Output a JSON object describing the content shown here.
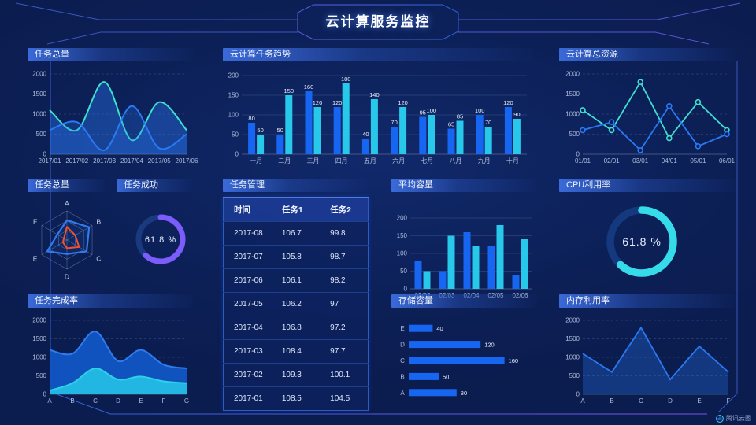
{
  "title": "云计算服务监控",
  "logo": {
    "text": "腾讯云图"
  },
  "colors": {
    "blue": "#1766f2",
    "cyan": "#28c8ea",
    "teal": "#3fe0cf",
    "purple": "#7c5cfa",
    "orange": "#f4502c",
    "background": "#0c2057"
  },
  "chart_data": [
    {
      "key": "task_total_line",
      "type": "area",
      "panel": "任务总量",
      "x": [
        "2017/01",
        "2017/02",
        "2017/03",
        "2017/04",
        "2017/05",
        "2017/06"
      ],
      "ylim": [
        0,
        2000
      ],
      "yticks": [
        0,
        500,
        1000,
        1500,
        2000
      ],
      "smooth": true,
      "grid": "dashed",
      "series": [
        {
          "name": "series-teal",
          "color": "#3fe0cf",
          "fill": "rgba(41,121,245,0.38)",
          "values": [
            1100,
            600,
            1800,
            350,
            1300,
            600
          ]
        },
        {
          "name": "series-blue",
          "color": "#2979f5",
          "fill": "rgba(41,121,245,0.25)",
          "values": [
            600,
            800,
            100,
            1200,
            150,
            500
          ]
        }
      ]
    },
    {
      "key": "cloud_task_trend",
      "type": "bar",
      "panel": "云计算任务趋势",
      "categories": [
        "一月",
        "二月",
        "三月",
        "四月",
        "五月",
        "六月",
        "七月",
        "八月",
        "九月",
        "十月"
      ],
      "ylim": [
        0,
        200
      ],
      "yticks": [
        0,
        50,
        100,
        150,
        200
      ],
      "labels": true,
      "series": [
        {
          "name": "series-blue",
          "color": "#1766f2",
          "values": [
            80,
            50,
            160,
            120,
            40,
            70,
            95,
            65,
            100,
            120
          ]
        },
        {
          "name": "series-cyan",
          "color": "#28c8ea",
          "values": [
            50,
            150,
            120,
            180,
            140,
            120,
            100,
            85,
            70,
            90
          ]
        }
      ]
    },
    {
      "key": "cloud_total_resource",
      "type": "line",
      "panel": "云计算总资源",
      "x": [
        "01/01",
        "02/01",
        "03/01",
        "04/01",
        "05/01",
        "06/01"
      ],
      "ylim": [
        0,
        2000
      ],
      "yticks": [
        0,
        500,
        1000,
        1500,
        2000
      ],
      "markers": true,
      "grid": "dashed",
      "series": [
        {
          "name": "series-teal",
          "color": "#3fe0cf",
          "values": [
            1100,
            600,
            1800,
            400,
            1300,
            600
          ]
        },
        {
          "name": "series-blue",
          "color": "#2979f5",
          "values": [
            600,
            800,
            100,
            1200,
            200,
            500
          ]
        }
      ]
    },
    {
      "key": "task_radar",
      "type": "radar",
      "panel": "任务总量",
      "axes": [
        "A",
        "B",
        "C",
        "D",
        "E",
        "F"
      ],
      "max": 100,
      "series": [
        {
          "name": "radar-blue",
          "color": "#2f7bf0",
          "values": [
            68,
            88,
            78,
            48,
            78,
            38
          ]
        },
        {
          "name": "radar-orange",
          "color": "#f4502c",
          "values": [
            45,
            33,
            48,
            28,
            16,
            12
          ]
        }
      ]
    },
    {
      "key": "task_success",
      "type": "donut",
      "panel": "任务成功",
      "value": 61.8,
      "unit": "%",
      "color": "#7c5cfa",
      "track": "#1a3a80"
    },
    {
      "key": "avg_capacity",
      "type": "bar",
      "panel": "平均容量",
      "categories": [
        "02/02",
        "02/03",
        "02/04",
        "02/05",
        "02/06"
      ],
      "ylim": [
        0,
        200
      ],
      "yticks": [
        0,
        50,
        100,
        150,
        200
      ],
      "labels": false,
      "series": [
        {
          "name": "series-blue",
          "color": "#1766f2",
          "values": [
            80,
            50,
            160,
            120,
            40
          ]
        },
        {
          "name": "series-cyan",
          "color": "#28c8ea",
          "values": [
            50,
            150,
            120,
            180,
            140
          ]
        }
      ]
    },
    {
      "key": "cpu_usage",
      "type": "donut",
      "panel": "CPU利用率",
      "value": 61.8,
      "unit": "%",
      "color": "#35dbe8",
      "track": "#15397e"
    },
    {
      "key": "task_table",
      "type": "table",
      "panel": "任务管理",
      "headers": [
        "时间",
        "任务1",
        "任务2"
      ],
      "rows": [
        [
          "2017-08",
          "106.7",
          "99.8"
        ],
        [
          "2017-07",
          "105.8",
          "98.7"
        ],
        [
          "2017-06",
          "106.1",
          "98.2"
        ],
        [
          "2017-05",
          "106.2",
          "97"
        ],
        [
          "2017-04",
          "106.8",
          "97.2"
        ],
        [
          "2017-03",
          "108.4",
          "97.7"
        ],
        [
          "2017-02",
          "109.3",
          "100.1"
        ],
        [
          "2017-01",
          "108.5",
          "104.5"
        ]
      ]
    },
    {
      "key": "completion_rate",
      "type": "area",
      "panel": "任务完成率",
      "x": [
        "A",
        "B",
        "C",
        "D",
        "E",
        "F",
        "G"
      ],
      "ylim": [
        0,
        2000
      ],
      "yticks": [
        0,
        500,
        1000,
        1500,
        2000
      ],
      "smooth": true,
      "grid": "dashed",
      "series": [
        {
          "name": "area-blue",
          "color": "#2f7bf0",
          "fill": "#1155c4",
          "fillOpacity": 0.95,
          "values": [
            1200,
            1100,
            1700,
            900,
            1200,
            800,
            700
          ]
        },
        {
          "name": "area-cyan",
          "color": "#2fd0e8",
          "fill": "#22b7e2",
          "fillOpacity": 1,
          "values": [
            100,
            300,
            700,
            400,
            480,
            350,
            300
          ]
        }
      ]
    },
    {
      "key": "storage",
      "type": "hbar",
      "panel": "存储容量",
      "categories": [
        "E",
        "D",
        "C",
        "B",
        "A"
      ],
      "values": [
        40,
        120,
        160,
        50,
        80
      ],
      "xmax": 175,
      "color": "#1766f2"
    },
    {
      "key": "memory",
      "type": "line",
      "panel": "内存利用率",
      "x": [
        "A",
        "B",
        "C",
        "D",
        "E",
        "F"
      ],
      "ylim": [
        0,
        2000
      ],
      "yticks": [
        0,
        500,
        1000,
        1500,
        2000
      ],
      "grid": "dashed",
      "series": [
        {
          "name": "series-blue",
          "color": "#2979f5",
          "fill": "rgba(41,121,245,0.30)",
          "values": [
            1100,
            600,
            1800,
            400,
            1300,
            600
          ]
        }
      ]
    }
  ]
}
